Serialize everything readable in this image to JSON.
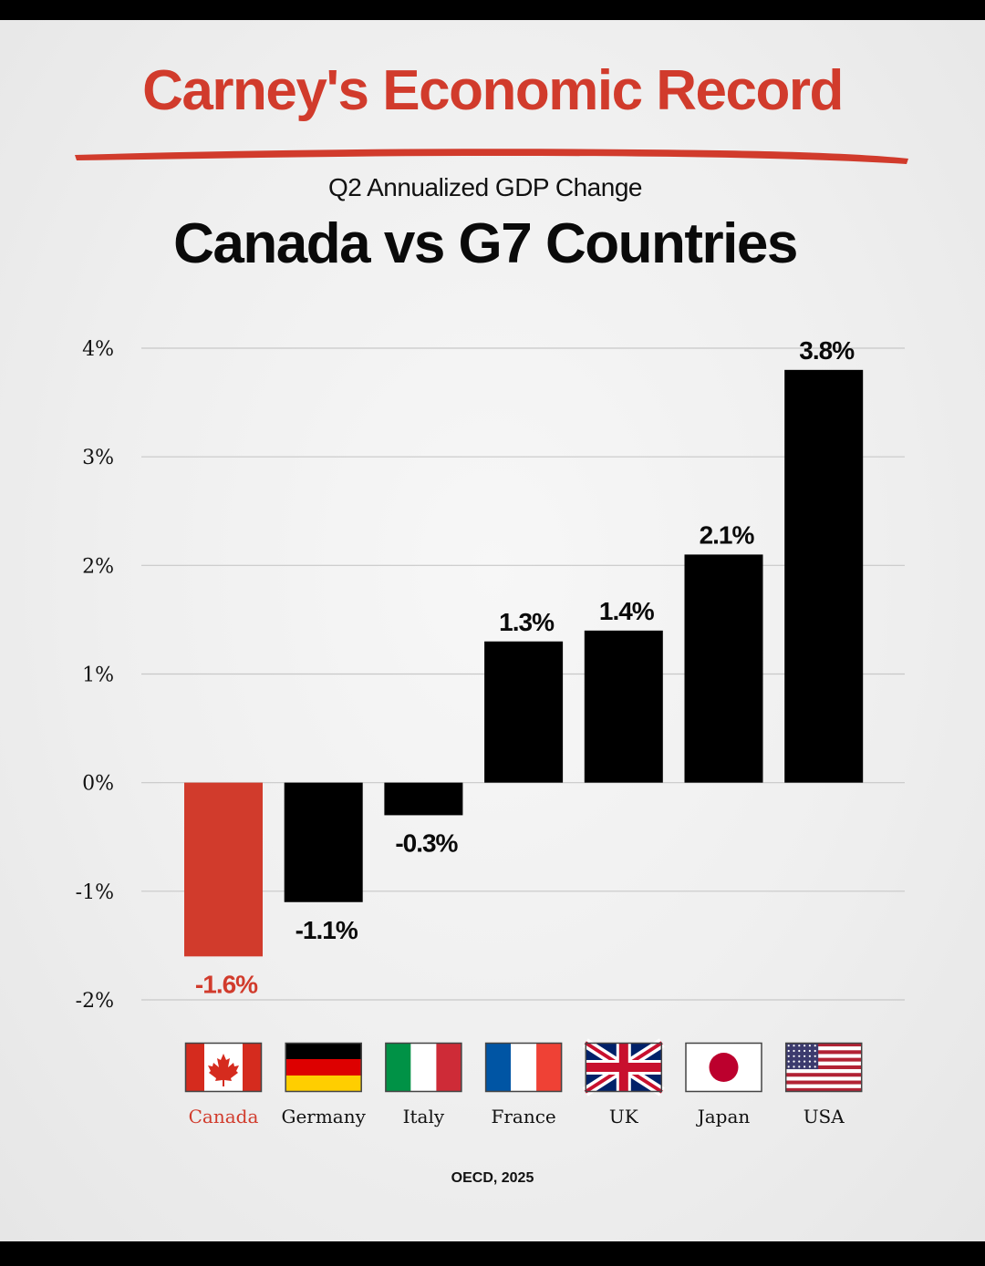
{
  "header": {
    "title": "Carney's Economic Record",
    "subtitle": "Q2 Annualized GDP Change",
    "headline": "Canada vs G7 Countries"
  },
  "chart_data": {
    "type": "bar",
    "title": "Canada vs G7 Countries",
    "subtitle": "Q2 Annualized GDP Change",
    "xlabel": "",
    "ylabel": "",
    "categories": [
      "Canada",
      "Germany",
      "Italy",
      "France",
      "UK",
      "Japan",
      "USA"
    ],
    "values": [
      -1.6,
      -1.1,
      -0.3,
      1.3,
      1.4,
      2.1,
      3.8
    ],
    "value_labels": [
      "-1.6%",
      "-1.1%",
      "-0.3%",
      "1.3%",
      "1.4%",
      "2.1%",
      "3.8%"
    ],
    "yticks": [
      4,
      3,
      2,
      1,
      0,
      -1,
      -2
    ],
    "ytick_labels": [
      "4%",
      "3%",
      "2%",
      "1%",
      "0%",
      "-1%",
      "-2%"
    ],
    "ylim": [
      -2,
      4
    ],
    "grid": true,
    "highlight_category": "Canada",
    "highlight_color": "#d13b2c",
    "bar_color": "#000000",
    "flag_icons": [
      "canada-flag-icon",
      "germany-flag-icon",
      "italy-flag-icon",
      "france-flag-icon",
      "uk-flag-icon",
      "japan-flag-icon",
      "usa-flag-icon"
    ]
  },
  "footer": {
    "source": "OECD, 2025"
  },
  "colors": {
    "accent": "#d13b2c",
    "text": "#0a0a0a",
    "grid": "#c8c8c8"
  }
}
